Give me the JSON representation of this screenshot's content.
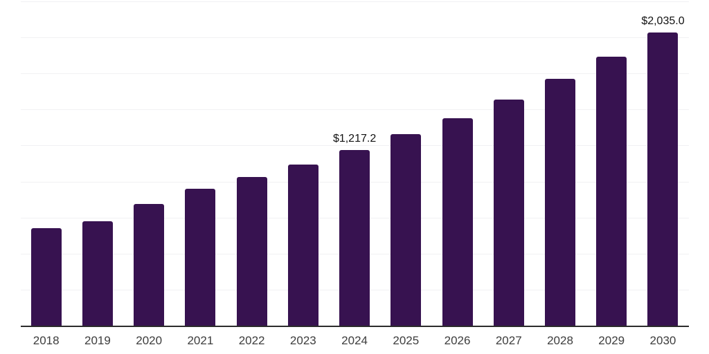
{
  "chart_data": {
    "type": "bar",
    "title": "",
    "xlabel": "",
    "ylabel": "",
    "categories": [
      "2018",
      "2019",
      "2020",
      "2021",
      "2022",
      "2023",
      "2024",
      "2025",
      "2026",
      "2027",
      "2028",
      "2029",
      "2030"
    ],
    "values": [
      678,
      724,
      846,
      950,
      1031,
      1117,
      1217.2,
      1330,
      1441,
      1567,
      1712,
      1864,
      2035.0
    ],
    "data_labels": [
      {
        "category": "2024",
        "text": "$1,217.2"
      },
      {
        "category": "2030",
        "text": "$2,035.0"
      }
    ],
    "ylim": [
      0,
      2250
    ],
    "gridline_interval": 250,
    "grid": "horizontal",
    "legend": "none",
    "y_tick_labels_visible": false,
    "colors": {
      "bar": "#371250",
      "axis_line": "#2b2b2b",
      "gridline": "#f1f1f3",
      "tick_label": "#3d3d3d",
      "data_label": "#111111",
      "background": "#ffffff"
    }
  }
}
